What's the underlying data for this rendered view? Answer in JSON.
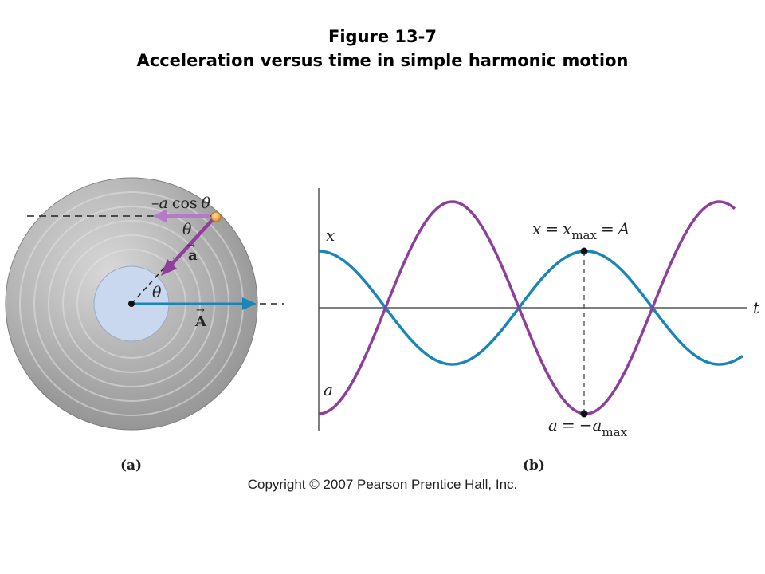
{
  "figure": {
    "number": "Figure 13-7",
    "title": "Acceleration versus time in simple harmonic motion"
  },
  "panel_a": {
    "label": "(a)",
    "projection_label_prefix": "–",
    "projection_var": "a",
    "projection_func": "cos",
    "angle_symbol": "θ",
    "acceleration_vector": "a",
    "position_vector": "A",
    "vector_arrow": "→",
    "disk_color": "#a6a6a6",
    "hub_color": "#c9d7ef",
    "acceleration_color": "#8e3f9c",
    "projection_color": "#b57ac8",
    "position_color": "#1a86b8"
  },
  "panel_b": {
    "label": "(b)",
    "time_axis": "t",
    "x_curve_label": "x",
    "a_curve_label": "a",
    "xmax_annotation": {
      "lhs": "x",
      "eq": "=",
      "var": "x",
      "sub": "max",
      "eq2": "=",
      "rhs": "A"
    },
    "amin_annotation": {
      "lhs": "a",
      "eq": "=",
      "minus": "−",
      "var": "a",
      "sub": "max"
    },
    "x_color": "#1a86b8",
    "a_color": "#8e3f9c"
  },
  "copyright": "Copyright © 2007 Pearson Prentice Hall, Inc."
}
